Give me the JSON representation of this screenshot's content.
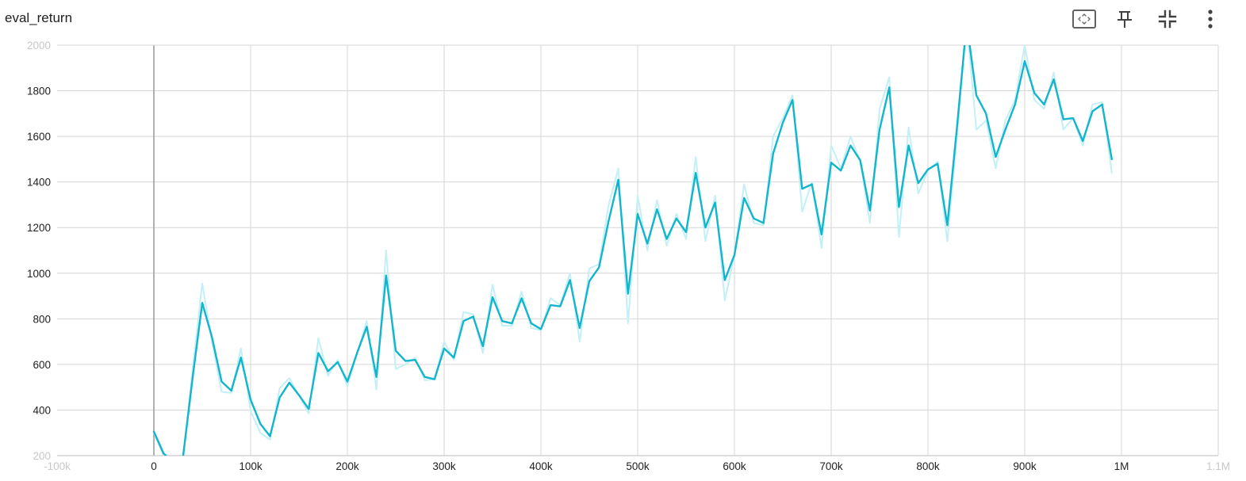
{
  "header": {
    "title": "eval_return",
    "icons": [
      "fit-domain-icon",
      "pin-icon",
      "collapse-icon",
      "more-vert-icon"
    ]
  },
  "chart_data": {
    "type": "line",
    "title": "eval_return",
    "xlabel": "",
    "ylabel": "",
    "xlim": [
      -100000,
      1100000
    ],
    "ylim": [
      200,
      2000
    ],
    "grid": true,
    "x_ticks": [
      {
        "value": -100000,
        "label": "-100k",
        "faint": true
      },
      {
        "value": 0,
        "label": "0"
      },
      {
        "value": 100000,
        "label": "100k"
      },
      {
        "value": 200000,
        "label": "200k"
      },
      {
        "value": 300000,
        "label": "300k"
      },
      {
        "value": 400000,
        "label": "400k"
      },
      {
        "value": 500000,
        "label": "500k"
      },
      {
        "value": 600000,
        "label": "600k"
      },
      {
        "value": 700000,
        "label": "700k"
      },
      {
        "value": 800000,
        "label": "800k"
      },
      {
        "value": 900000,
        "label": "900k"
      },
      {
        "value": 1000000,
        "label": "1M"
      },
      {
        "value": 1100000,
        "label": "1.1M",
        "faint": true
      }
    ],
    "y_ticks": [
      {
        "value": 200,
        "label": "200",
        "faint": true
      },
      {
        "value": 400,
        "label": "400"
      },
      {
        "value": 600,
        "label": "600"
      },
      {
        "value": 800,
        "label": "800"
      },
      {
        "value": 1000,
        "label": "1000"
      },
      {
        "value": 1200,
        "label": "1200"
      },
      {
        "value": 1400,
        "label": "1400"
      },
      {
        "value": 1600,
        "label": "1600"
      },
      {
        "value": 1800,
        "label": "1800"
      },
      {
        "value": 2000,
        "label": "2000",
        "faint": true
      }
    ],
    "series": [
      {
        "role": "raw",
        "color": "#c3eff7",
        "x": [
          0,
          10000,
          20000,
          30000,
          40000,
          50000,
          60000,
          70000,
          80000,
          90000,
          100000,
          110000,
          120000,
          130000,
          140000,
          150000,
          160000,
          170000,
          180000,
          190000,
          200000,
          210000,
          220000,
          230000,
          240000,
          250000,
          260000,
          270000,
          280000,
          290000,
          300000,
          310000,
          320000,
          330000,
          340000,
          350000,
          360000,
          370000,
          380000,
          390000,
          400000,
          410000,
          420000,
          430000,
          440000,
          450000,
          460000,
          470000,
          480000,
          490000,
          500000,
          510000,
          520000,
          530000,
          540000,
          550000,
          560000,
          570000,
          580000,
          590000,
          600000,
          610000,
          620000,
          630000,
          640000,
          650000,
          660000,
          670000,
          680000,
          690000,
          700000,
          710000,
          720000,
          730000,
          740000,
          750000,
          760000,
          770000,
          780000,
          790000,
          800000,
          810000,
          820000,
          830000,
          840000,
          850000,
          860000,
          870000,
          880000,
          890000,
          900000,
          910000,
          920000,
          930000,
          940000,
          950000,
          960000,
          970000,
          980000,
          990000
        ],
        "values": [
          300,
          200,
          160,
          180,
          580,
          955,
          700,
          480,
          475,
          670,
          395,
          300,
          270,
          495,
          540,
          465,
          385,
          715,
          550,
          620,
          505,
          650,
          790,
          490,
          1100,
          580,
          600,
          630,
          530,
          535,
          700,
          620,
          830,
          820,
          650,
          950,
          770,
          770,
          920,
          760,
          750,
          890,
          860,
          1000,
          700,
          1020,
          1040,
          1300,
          1460,
          780,
          1340,
          1100,
          1320,
          1120,
          1260,
          1150,
          1510,
          1140,
          1340,
          880,
          1080,
          1390,
          1220,
          1210,
          1600,
          1680,
          1780,
          1270,
          1400,
          1110,
          1560,
          1460,
          1600,
          1490,
          1220,
          1720,
          1860,
          1160,
          1640,
          1350,
          1450,
          1490,
          1140,
          1600,
          2100,
          1630,
          1670,
          1460,
          1670,
          1760,
          2000,
          1760,
          1720,
          1880,
          1630,
          1680,
          1560,
          1740,
          1750,
          1440
        ]
      },
      {
        "role": "smoothed",
        "color": "#12b5cb",
        "x": [
          0,
          10000,
          20000,
          30000,
          40000,
          50000,
          60000,
          70000,
          80000,
          90000,
          100000,
          110000,
          120000,
          130000,
          140000,
          150000,
          160000,
          170000,
          180000,
          190000,
          200000,
          210000,
          220000,
          230000,
          240000,
          250000,
          260000,
          270000,
          280000,
          290000,
          300000,
          310000,
          320000,
          330000,
          340000,
          350000,
          360000,
          370000,
          380000,
          390000,
          400000,
          410000,
          420000,
          430000,
          440000,
          450000,
          460000,
          470000,
          480000,
          490000,
          500000,
          510000,
          520000,
          530000,
          540000,
          550000,
          560000,
          570000,
          580000,
          590000,
          600000,
          610000,
          620000,
          630000,
          640000,
          650000,
          660000,
          670000,
          680000,
          690000,
          700000,
          710000,
          720000,
          730000,
          740000,
          750000,
          760000,
          770000,
          780000,
          790000,
          800000,
          810000,
          820000,
          830000,
          840000,
          850000,
          860000,
          870000,
          880000,
          890000,
          900000,
          910000,
          920000,
          930000,
          940000,
          950000,
          960000,
          970000,
          980000,
          990000
        ],
        "values": [
          305,
          210,
          170,
          190,
          540,
          870,
          720,
          525,
          485,
          630,
          445,
          340,
          285,
          455,
          520,
          465,
          405,
          650,
          570,
          610,
          525,
          650,
          765,
          545,
          990,
          660,
          615,
          620,
          545,
          535,
          670,
          630,
          790,
          810,
          680,
          895,
          790,
          780,
          890,
          780,
          755,
          860,
          855,
          970,
          760,
          965,
          1025,
          1230,
          1410,
          910,
          1260,
          1130,
          1280,
          1150,
          1240,
          1180,
          1440,
          1200,
          1310,
          970,
          1080,
          1330,
          1240,
          1220,
          1525,
          1660,
          1760,
          1370,
          1390,
          1170,
          1485,
          1450,
          1560,
          1495,
          1275,
          1630,
          1815,
          1290,
          1560,
          1395,
          1455,
          1480,
          1210,
          1640,
          2100,
          1780,
          1700,
          1510,
          1630,
          1740,
          1930,
          1790,
          1740,
          1850,
          1675,
          1680,
          1580,
          1710,
          1740,
          1500
        ]
      }
    ]
  }
}
